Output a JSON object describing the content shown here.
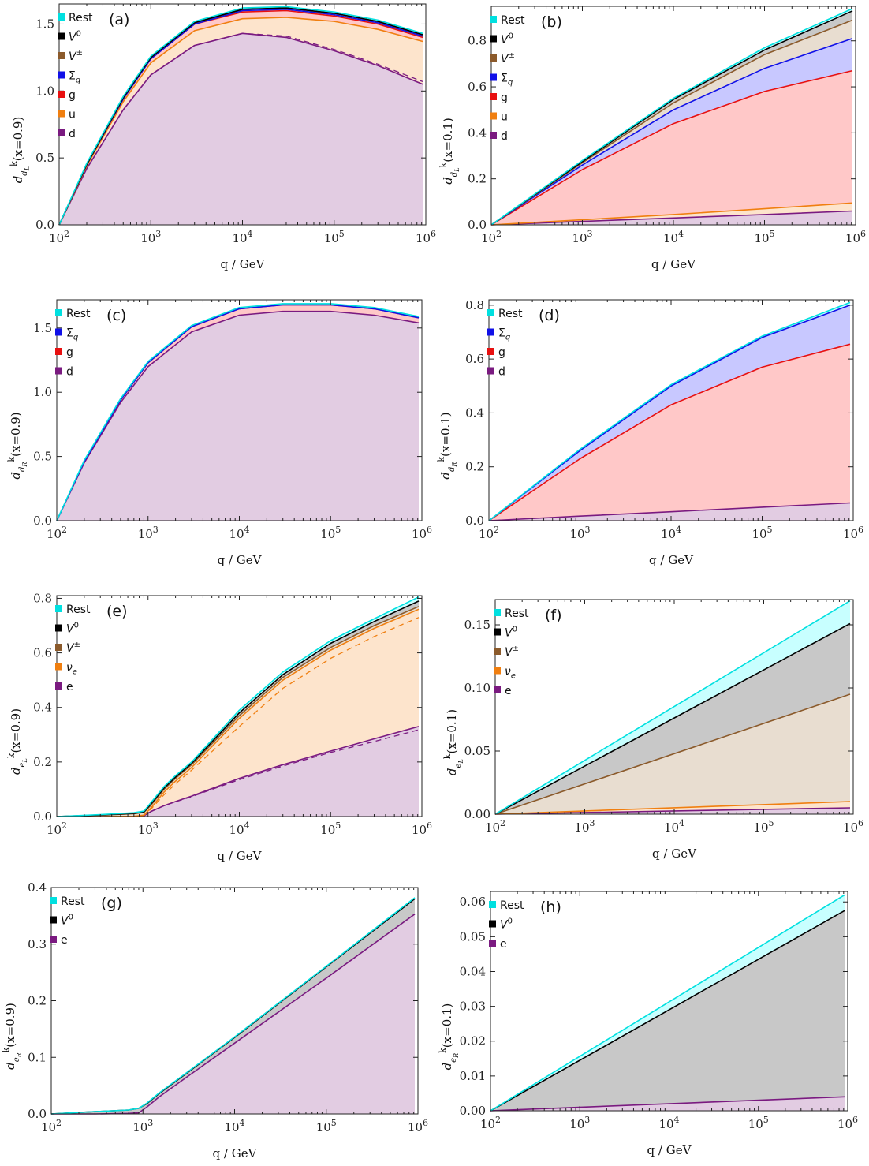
{
  "figure": {
    "xlabel": "q / GeV",
    "x_ticks": [
      "10^2",
      "10^3",
      "10^4",
      "10^5",
      "10^6"
    ]
  },
  "colors": {
    "Rest": "#00e0e0",
    "V0": "#000000",
    "Vpm": "#8b5a2b",
    "Sigma_q": "#1010e8",
    "g": "#e81010",
    "u": "#f07f10",
    "d": "#7a1a80",
    "nu_e": "#f07f10",
    "e": "#7a1a80"
  },
  "chart_data": [
    {
      "type": "area",
      "tag": "(a)",
      "ylabel": "d_{d_L}^k(x=0.9)",
      "x_scale": "log",
      "xlim": [
        100,
        1000000
      ],
      "ylim": [
        0,
        1.65
      ],
      "y_ticks": [
        0.0,
        0.5,
        1.0,
        1.5
      ],
      "y_tick_labels": [
        "0.0",
        "0.5",
        "1.0",
        "1.5"
      ],
      "legend": [
        "Rest",
        "V^0",
        "V^±",
        "Σ_q",
        "g",
        "u",
        "d"
      ],
      "x": [
        100,
        200,
        500,
        1000,
        3000,
        10000,
        30000,
        100000,
        300000,
        1000000
      ],
      "series": [
        {
          "name": "d",
          "color": "#7a1a80",
          "fill": "#e2cce2",
          "values": [
            0,
            0.42,
            0.86,
            1.12,
            1.34,
            1.43,
            1.4,
            1.3,
            1.19,
            1.05
          ],
          "dashed": [
            0,
            0.42,
            0.86,
            1.12,
            1.34,
            1.43,
            1.41,
            1.31,
            1.2,
            1.07
          ]
        },
        {
          "name": "u",
          "color": "#f07f10",
          "fill": "#fde4cc",
          "values": [
            0,
            0.44,
            0.92,
            1.21,
            1.45,
            1.54,
            1.55,
            1.52,
            1.46,
            1.37
          ]
        },
        {
          "name": "g",
          "color": "#e81010",
          "fill": "#ffc8c8",
          "values": [
            0,
            0.45,
            0.94,
            1.24,
            1.5,
            1.59,
            1.6,
            1.56,
            1.5,
            1.4
          ]
        },
        {
          "name": "Σ_q",
          "color": "#1010e8",
          "fill": "#c8c8ff",
          "values": [
            0,
            0.45,
            0.94,
            1.24,
            1.5,
            1.6,
            1.61,
            1.57,
            1.51,
            1.41
          ]
        },
        {
          "name": "V^±",
          "color": "#8b5a2b",
          "fill": "#e8ddd0",
          "values": [
            0,
            0.45,
            0.95,
            1.25,
            1.51,
            1.61,
            1.62,
            1.58,
            1.52,
            1.42
          ]
        },
        {
          "name": "V^0",
          "color": "#000000",
          "fill": "#c8c8c8",
          "values": [
            0,
            0.45,
            0.95,
            1.25,
            1.51,
            1.61,
            1.62,
            1.58,
            1.52,
            1.42
          ]
        },
        {
          "name": "Rest",
          "color": "#00e0e0",
          "fill": "#c8ffff",
          "values": [
            0,
            0.46,
            0.96,
            1.26,
            1.52,
            1.62,
            1.63,
            1.59,
            1.53,
            1.43
          ]
        }
      ]
    },
    {
      "type": "area",
      "tag": "(b)",
      "ylabel": "d_{d_L}^k(x=0.1)",
      "x_scale": "log",
      "xlim": [
        100,
        1000000
      ],
      "ylim": [
        0,
        0.95
      ],
      "y_ticks": [
        0.0,
        0.2,
        0.4,
        0.6,
        0.8
      ],
      "y_tick_labels": [
        "0.0",
        "0.2",
        "0.4",
        "0.6",
        "0.8"
      ],
      "legend": [
        "Rest",
        "V^0",
        "V^±",
        "Σ_q",
        "g",
        "u",
        "d"
      ],
      "x": [
        100,
        1000,
        10000,
        100000,
        1000000
      ],
      "series": [
        {
          "name": "d",
          "color": "#7a1a80",
          "fill": "#e2cce2",
          "values": [
            0,
            0.015,
            0.03,
            0.045,
            0.06
          ]
        },
        {
          "name": "u",
          "color": "#f07f10",
          "fill": "#fde4cc",
          "values": [
            0,
            0.022,
            0.045,
            0.07,
            0.095
          ]
        },
        {
          "name": "g",
          "color": "#e81010",
          "fill": "#ffc8c8",
          "values": [
            0,
            0.24,
            0.44,
            0.58,
            0.67
          ]
        },
        {
          "name": "Σ_q",
          "color": "#1010e8",
          "fill": "#c8c8ff",
          "values": [
            0,
            0.26,
            0.5,
            0.68,
            0.81
          ]
        },
        {
          "name": "V^±",
          "color": "#8b5a2b",
          "fill": "#e8ddd0",
          "values": [
            0,
            0.27,
            0.53,
            0.74,
            0.89
          ]
        },
        {
          "name": "V^0",
          "color": "#000000",
          "fill": "#c8c8c8",
          "values": [
            0,
            0.275,
            0.545,
            0.76,
            0.93
          ]
        },
        {
          "name": "Rest",
          "color": "#00e0e0",
          "fill": "#c8ffff",
          "values": [
            0,
            0.28,
            0.55,
            0.77,
            0.94
          ]
        }
      ]
    },
    {
      "type": "area",
      "tag": "(c)",
      "ylabel": "d_{d_R}^k(x=0.9)",
      "x_scale": "log",
      "xlim": [
        100,
        1000000
      ],
      "ylim": [
        0,
        1.72
      ],
      "y_ticks": [
        0.0,
        0.5,
        1.0,
        1.5
      ],
      "y_tick_labels": [
        "0.0",
        "0.5",
        "1.0",
        "1.5"
      ],
      "legend": [
        "Rest",
        "Σ_q",
        "g",
        "d"
      ],
      "x": [
        100,
        200,
        500,
        1000,
        3000,
        10000,
        30000,
        100000,
        300000,
        1000000
      ],
      "series": [
        {
          "name": "d",
          "color": "#7a1a80",
          "fill": "#e2cce2",
          "values": [
            0,
            0.45,
            0.92,
            1.2,
            1.47,
            1.6,
            1.63,
            1.63,
            1.6,
            1.54
          ]
        },
        {
          "name": "g",
          "color": "#e81010",
          "fill": "#ffc8c8",
          "values": [
            0,
            0.46,
            0.94,
            1.23,
            1.51,
            1.65,
            1.68,
            1.68,
            1.65,
            1.58
          ]
        },
        {
          "name": "Σ_q",
          "color": "#1010e8",
          "fill": "#c8c8ff",
          "values": [
            0,
            0.46,
            0.94,
            1.23,
            1.51,
            1.65,
            1.68,
            1.68,
            1.65,
            1.58
          ]
        },
        {
          "name": "Rest",
          "color": "#00e0e0",
          "fill": "#c8ffff",
          "values": [
            0,
            0.47,
            0.95,
            1.24,
            1.52,
            1.66,
            1.69,
            1.69,
            1.66,
            1.59
          ]
        }
      ]
    },
    {
      "type": "area",
      "tag": "(d)",
      "ylabel": "d_{d_R}^k(x=0.1)",
      "x_scale": "log",
      "xlim": [
        100,
        1000000
      ],
      "ylim": [
        0,
        0.82
      ],
      "y_ticks": [
        0.0,
        0.2,
        0.4,
        0.6,
        0.8
      ],
      "y_tick_labels": [
        "0.0",
        "0.2",
        "0.4",
        "0.6",
        "0.8"
      ],
      "legend": [
        "Rest",
        "Σ_q",
        "g",
        "d"
      ],
      "x": [
        100,
        1000,
        10000,
        100000,
        1000000
      ],
      "series": [
        {
          "name": "d",
          "color": "#7a1a80",
          "fill": "#e2cce2",
          "values": [
            0,
            0.017,
            0.033,
            0.05,
            0.066
          ]
        },
        {
          "name": "g",
          "color": "#e81010",
          "fill": "#ffc8c8",
          "values": [
            0,
            0.23,
            0.43,
            0.57,
            0.655
          ]
        },
        {
          "name": "Σ_q",
          "color": "#1010e8",
          "fill": "#c8c8ff",
          "values": [
            0,
            0.26,
            0.5,
            0.68,
            0.8
          ]
        },
        {
          "name": "Rest",
          "color": "#00e0e0",
          "fill": "#c8ffff",
          "values": [
            0,
            0.265,
            0.505,
            0.685,
            0.81
          ]
        }
      ]
    },
    {
      "type": "area",
      "tag": "(e)",
      "ylabel": "d_{e_L}^k(x=0.9)",
      "x_scale": "log",
      "xlim": [
        100,
        1000000
      ],
      "ylim": [
        0,
        0.81
      ],
      "y_ticks": [
        0.0,
        0.2,
        0.4,
        0.6,
        0.8
      ],
      "y_tick_labels": [
        "0.0",
        "0.2",
        "0.4",
        "0.6",
        "0.8"
      ],
      "legend": [
        "Rest",
        "V^0",
        "V^±",
        "ν_e",
        "e"
      ],
      "x": [
        100,
        300,
        700,
        900,
        1100,
        1500,
        2000,
        3000,
        10000,
        30000,
        100000,
        300000,
        1000000
      ],
      "series": [
        {
          "name": "e",
          "color": "#7a1a80",
          "fill": "#e2cce2",
          "values": [
            0,
            0,
            0,
            0.003,
            0.02,
            0.04,
            0.055,
            0.075,
            0.14,
            0.19,
            0.24,
            0.285,
            0.33
          ],
          "dashed": [
            0,
            0,
            0,
            0.003,
            0.02,
            0.04,
            0.054,
            0.073,
            0.135,
            0.185,
            0.235,
            0.275,
            0.318
          ]
        },
        {
          "name": "ν_e",
          "color": "#f07f10",
          "fill": "#fde4cc",
          "values": [
            0,
            0,
            0.001,
            0.005,
            0.035,
            0.09,
            0.13,
            0.18,
            0.36,
            0.5,
            0.61,
            0.69,
            0.76
          ],
          "dashed": [
            0,
            0,
            0.001,
            0.004,
            0.03,
            0.08,
            0.12,
            0.17,
            0.33,
            0.47,
            0.58,
            0.66,
            0.73
          ]
        },
        {
          "name": "V^±",
          "color": "#8b5a2b",
          "fill": "#e8ddd0",
          "values": [
            0,
            0.005,
            0.01,
            0.015,
            0.045,
            0.1,
            0.14,
            0.19,
            0.37,
            0.51,
            0.62,
            0.7,
            0.77
          ]
        },
        {
          "name": "V^0",
          "color": "#000000",
          "fill": "#c8c8c8",
          "values": [
            0,
            0.006,
            0.012,
            0.017,
            0.05,
            0.105,
            0.145,
            0.195,
            0.38,
            0.52,
            0.635,
            0.715,
            0.79
          ]
        },
        {
          "name": "Rest",
          "color": "#00e0e0",
          "fill": "#c8ffff",
          "values": [
            0,
            0.007,
            0.014,
            0.02,
            0.055,
            0.11,
            0.15,
            0.2,
            0.39,
            0.53,
            0.645,
            0.725,
            0.805
          ]
        }
      ]
    },
    {
      "type": "area",
      "tag": "(f)",
      "ylabel": "d_{e_L}^k(x=0.1)",
      "x_scale": "log",
      "xlim": [
        100,
        1000000
      ],
      "ylim": [
        0,
        0.17
      ],
      "y_ticks": [
        0.0,
        0.05,
        0.1,
        0.15
      ],
      "y_tick_labels": [
        "0.00",
        "0.05",
        "0.10",
        "0.15"
      ],
      "legend": [
        "Rest",
        "V^0",
        "V^±",
        "ν_e",
        "e"
      ],
      "x": [
        100,
        1000000
      ],
      "series": [
        {
          "name": "e",
          "color": "#7a1a80",
          "fill": "#e2cce2",
          "values": [
            0,
            0.005
          ]
        },
        {
          "name": "ν_e",
          "color": "#f07f10",
          "fill": "#fde4cc",
          "values": [
            0,
            0.01
          ]
        },
        {
          "name": "V^±",
          "color": "#8b5a2b",
          "fill": "#e8ddd0",
          "values": [
            0,
            0.095
          ]
        },
        {
          "name": "V^0",
          "color": "#000000",
          "fill": "#c8c8c8",
          "values": [
            0,
            0.151
          ]
        },
        {
          "name": "Rest",
          "color": "#00e0e0",
          "fill": "#c8ffff",
          "values": [
            0,
            0.169
          ]
        }
      ]
    },
    {
      "type": "area",
      "tag": "(g)",
      "ylabel": "d_{e_R}^k(x=0.9)",
      "x_scale": "log",
      "xlim": [
        100,
        1000000
      ],
      "ylim": [
        0,
        0.4
      ],
      "y_ticks": [
        0.0,
        0.1,
        0.2,
        0.3,
        0.4
      ],
      "y_tick_labels": [
        "0.0",
        "0.1",
        "0.2",
        "0.3",
        "0.4"
      ],
      "legend": [
        "Rest",
        "V^0",
        "e"
      ],
      "x": [
        100,
        300,
        700,
        900,
        1100,
        1500,
        3000,
        10000,
        100000,
        1000000
      ],
      "series": [
        {
          "name": "e",
          "color": "#7a1a80",
          "fill": "#e2cce2",
          "values": [
            0,
            0,
            0.001,
            0.002,
            0.012,
            0.03,
            0.065,
            0.125,
            0.24,
            0.353
          ]
        },
        {
          "name": "V^0",
          "color": "#000000",
          "fill": "#c8c8c8",
          "values": [
            0,
            0.004,
            0.007,
            0.01,
            0.018,
            0.036,
            0.072,
            0.135,
            0.26,
            0.38
          ]
        },
        {
          "name": "Rest",
          "color": "#00e0e0",
          "fill": "#c8ffff",
          "values": [
            0,
            0.004,
            0.007,
            0.01,
            0.019,
            0.037,
            0.073,
            0.136,
            0.261,
            0.382
          ]
        }
      ]
    },
    {
      "type": "area",
      "tag": "(h)",
      "ylabel": "d_{e_R}^k(x=0.1)",
      "x_scale": "log",
      "xlim": [
        100,
        1000000
      ],
      "ylim": [
        0,
        0.063
      ],
      "y_ticks": [
        0.0,
        0.01,
        0.02,
        0.03,
        0.04,
        0.05,
        0.06
      ],
      "y_tick_labels": [
        "0.00",
        "0.01",
        "0.02",
        "0.03",
        "0.04",
        "0.05",
        "0.06"
      ],
      "legend": [
        "Rest",
        "V^0",
        "e"
      ],
      "x": [
        100,
        1000000
      ],
      "series": [
        {
          "name": "e",
          "color": "#7a1a80",
          "fill": "#e2cce2",
          "values": [
            0,
            0.004
          ]
        },
        {
          "name": "V^0",
          "color": "#000000",
          "fill": "#c8c8c8",
          "values": [
            0,
            0.0575
          ]
        },
        {
          "name": "Rest",
          "color": "#00e0e0",
          "fill": "#c8ffff",
          "values": [
            0,
            0.062
          ]
        }
      ]
    }
  ]
}
